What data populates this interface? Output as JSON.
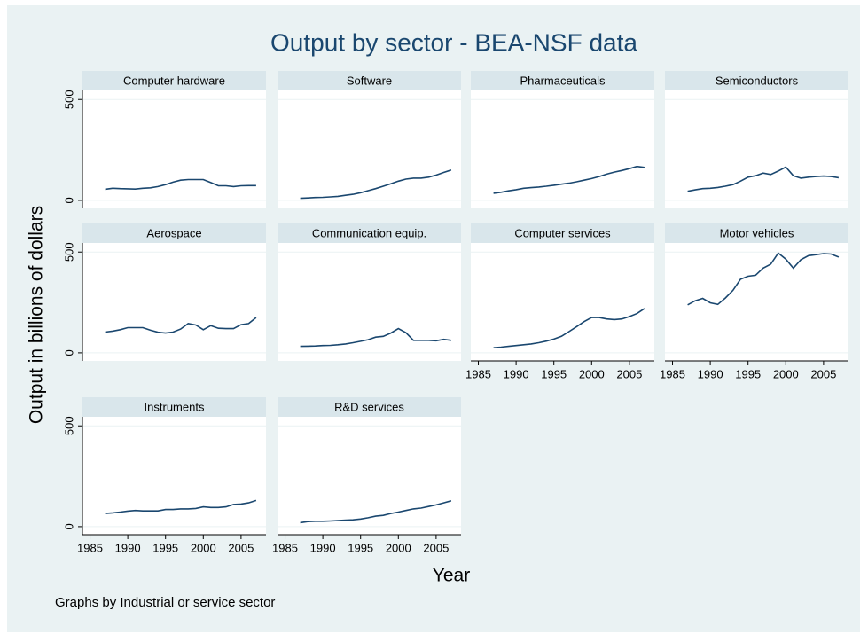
{
  "title": "Output by sector - BEA-NSF data",
  "y_label": "Output in billions of dollars",
  "x_label": "Year",
  "note": "Graphs by Industrial or service sector",
  "chart_data": [
    {
      "type": "line",
      "title": "Computer hardware",
      "color": "#1a476f",
      "x": [
        1987,
        1988,
        1989,
        1990,
        1991,
        1992,
        1993,
        1994,
        1995,
        1996,
        1997,
        1998,
        1999,
        2000,
        2001,
        2002,
        2003,
        2004,
        2005,
        2006,
        2007
      ],
      "values": [
        55,
        60,
        58,
        57,
        56,
        60,
        62,
        68,
        78,
        90,
        100,
        103,
        103,
        103,
        88,
        72,
        72,
        68,
        72,
        73,
        73
      ],
      "xlim": [
        1984,
        2008.3
      ],
      "ylim": [
        -40,
        545
      ],
      "yticks": [
        0,
        500
      ]
    },
    {
      "type": "line",
      "title": "Software",
      "color": "#1a476f",
      "x": [
        1987,
        1988,
        1989,
        1990,
        1991,
        1992,
        1993,
        1994,
        1995,
        1996,
        1997,
        1998,
        1999,
        2000,
        2001,
        2002,
        2003,
        2004,
        2005,
        2006,
        2007
      ],
      "values": [
        10,
        12,
        14,
        15,
        17,
        20,
        25,
        30,
        38,
        48,
        58,
        70,
        82,
        95,
        105,
        110,
        110,
        115,
        125,
        138,
        150
      ],
      "xlim": [
        1984,
        2008.3
      ],
      "ylim": [
        -40,
        545
      ],
      "yticks": [
        0,
        500
      ]
    },
    {
      "type": "line",
      "title": "Pharmaceuticals",
      "color": "#1a476f",
      "x": [
        1987,
        1988,
        1989,
        1990,
        1991,
        1992,
        1993,
        1994,
        1995,
        1996,
        1997,
        1998,
        1999,
        2000,
        2001,
        2002,
        2003,
        2004,
        2005,
        2006,
        2007
      ],
      "values": [
        35,
        40,
        47,
        53,
        60,
        63,
        66,
        70,
        75,
        80,
        85,
        92,
        100,
        108,
        118,
        130,
        140,
        148,
        157,
        168,
        163
      ],
      "xlim": [
        1984,
        2008.3
      ],
      "ylim": [
        -40,
        545
      ],
      "yticks": [
        0,
        500
      ]
    },
    {
      "type": "line",
      "title": "Semiconductors",
      "color": "#1a476f",
      "x": [
        1987,
        1988,
        1989,
        1990,
        1991,
        1992,
        1993,
        1994,
        1995,
        1996,
        1997,
        1998,
        1999,
        2000,
        2001,
        2002,
        2003,
        2004,
        2005,
        2006,
        2007
      ],
      "values": [
        45,
        52,
        58,
        60,
        64,
        70,
        78,
        95,
        115,
        122,
        135,
        128,
        145,
        165,
        122,
        110,
        115,
        118,
        120,
        118,
        112
      ],
      "xlim": [
        1984,
        2008.3
      ],
      "ylim": [
        -40,
        545
      ],
      "yticks": [
        0,
        500
      ]
    },
    {
      "type": "line",
      "title": "Aerospace",
      "color": "#1a476f",
      "x": [
        1987,
        1988,
        1989,
        1990,
        1991,
        1992,
        1993,
        1994,
        1995,
        1996,
        1997,
        1998,
        1999,
        2000,
        2001,
        2002,
        2003,
        2004,
        2005,
        2006,
        2007
      ],
      "values": [
        103,
        108,
        115,
        125,
        125,
        125,
        112,
        102,
        98,
        103,
        118,
        145,
        138,
        115,
        135,
        122,
        120,
        120,
        140,
        145,
        175
      ],
      "xlim": [
        1984,
        2008.3
      ],
      "ylim": [
        -40,
        545
      ],
      "yticks": [
        0,
        500
      ]
    },
    {
      "type": "line",
      "title": "Communication equip.",
      "color": "#1a476f",
      "x": [
        1987,
        1988,
        1989,
        1990,
        1991,
        1992,
        1993,
        1994,
        1995,
        1996,
        1997,
        1998,
        1999,
        2000,
        2001,
        2002,
        2003,
        2004,
        2005,
        2006,
        2007
      ],
      "values": [
        32,
        33,
        34,
        36,
        37,
        40,
        44,
        50,
        57,
        65,
        78,
        82,
        98,
        120,
        100,
        62,
        62,
        62,
        60,
        67,
        62
      ],
      "xlim": [
        1984,
        2008.3
      ],
      "ylim": [
        -40,
        545
      ],
      "yticks": [
        0,
        500
      ]
    },
    {
      "type": "line",
      "title": "Computer services",
      "color": "#1a476f",
      "x": [
        1987,
        1988,
        1989,
        1990,
        1991,
        1992,
        1993,
        1994,
        1995,
        1996,
        1997,
        1998,
        1999,
        2000,
        2001,
        2002,
        2003,
        2004,
        2005,
        2006,
        2007
      ],
      "values": [
        25,
        28,
        32,
        36,
        40,
        44,
        50,
        58,
        68,
        82,
        105,
        130,
        155,
        175,
        175,
        168,
        165,
        168,
        180,
        195,
        220
      ],
      "xlim": [
        1984,
        2008.3
      ],
      "ylim": [
        -40,
        545
      ],
      "yticks": [
        0,
        500
      ],
      "xticks": [
        1985,
        1990,
        1995,
        2000,
        2005
      ]
    },
    {
      "type": "line",
      "title": "Motor vehicles",
      "color": "#1a476f",
      "x": [
        1987,
        1988,
        1989,
        1990,
        1991,
        1992,
        1993,
        1994,
        1995,
        1996,
        1997,
        1998,
        1999,
        2000,
        2001,
        2002,
        2003,
        2004,
        2005,
        2006,
        2007
      ],
      "values": [
        238,
        258,
        270,
        248,
        240,
        272,
        310,
        365,
        380,
        385,
        420,
        440,
        495,
        465,
        420,
        462,
        482,
        487,
        492,
        490,
        475
      ],
      "xlim": [
        1984,
        2008.3
      ],
      "ylim": [
        -40,
        545
      ],
      "yticks": [
        0,
        500
      ],
      "xticks": [
        1985,
        1990,
        1995,
        2000,
        2005
      ]
    },
    {
      "type": "line",
      "title": "Instruments",
      "color": "#1a476f",
      "x": [
        1987,
        1988,
        1989,
        1990,
        1991,
        1992,
        1993,
        1994,
        1995,
        1996,
        1997,
        1998,
        1999,
        2000,
        2001,
        2002,
        2003,
        2004,
        2005,
        2006,
        2007
      ],
      "values": [
        65,
        68,
        72,
        77,
        80,
        78,
        78,
        78,
        85,
        85,
        88,
        88,
        90,
        98,
        95,
        95,
        98,
        110,
        112,
        118,
        130
      ],
      "xlim": [
        1984,
        2008.3
      ],
      "ylim": [
        -40,
        545
      ],
      "yticks": [
        0,
        500
      ],
      "xticks": [
        1985,
        1990,
        1995,
        2000,
        2005
      ]
    },
    {
      "type": "line",
      "title": "R&D services",
      "color": "#1a476f",
      "x": [
        1987,
        1988,
        1989,
        1990,
        1991,
        1992,
        1993,
        1994,
        1995,
        1996,
        1997,
        1998,
        1999,
        2000,
        2001,
        2002,
        2003,
        2004,
        2005,
        2006,
        2007
      ],
      "values": [
        20,
        25,
        27,
        27,
        28,
        30,
        32,
        34,
        38,
        44,
        52,
        56,
        65,
        72,
        80,
        88,
        92,
        100,
        108,
        118,
        128
      ],
      "xlim": [
        1984,
        2008.3
      ],
      "ylim": [
        -40,
        545
      ],
      "yticks": [
        0,
        500
      ],
      "xticks": [
        1985,
        1990,
        1995,
        2000,
        2005
      ]
    }
  ]
}
